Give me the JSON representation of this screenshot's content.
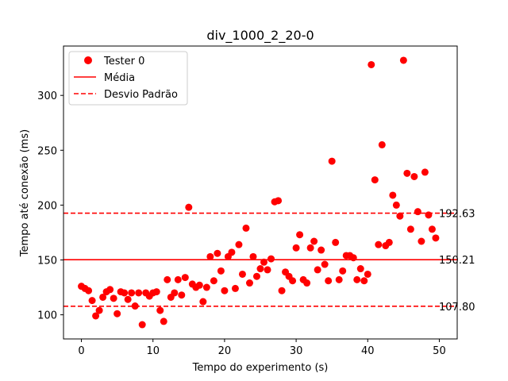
{
  "chart_data": {
    "type": "scatter",
    "title": "div_1000_2_20-0",
    "xlabel": "Tempo do experimento (s)",
    "ylabel": "Tempo até conexão (ms)",
    "xlim": [
      -2.5,
      52.5
    ],
    "ylim": [
      78,
      345
    ],
    "xticks": [
      0,
      10,
      20,
      30,
      40,
      50
    ],
    "yticks": [
      100,
      150,
      200,
      250,
      300
    ],
    "grid": false,
    "legend_position": "top-left",
    "colors": {
      "points": "#ff0000",
      "lines": "#ff0000",
      "axes": "#000000"
    },
    "series": [
      {
        "name": "Tester 0",
        "marker": "circle",
        "x": [
          0,
          0.5,
          1,
          1.5,
          2,
          2.5,
          3,
          3.5,
          4,
          4.5,
          5,
          5.5,
          6,
          6.5,
          7,
          7.5,
          8,
          8.5,
          9,
          9.5,
          10,
          10.5,
          11,
          11.5,
          12,
          12.5,
          13,
          13.5,
          14,
          14.5,
          15,
          15.5,
          16,
          16.5,
          17,
          17.5,
          18,
          18.5,
          19,
          19.5,
          20,
          20.5,
          21,
          21.5,
          22,
          22.5,
          23,
          23.5,
          24,
          24.5,
          25,
          25.5,
          26,
          26.5,
          27,
          27.5,
          28,
          28.5,
          29,
          29.5,
          30,
          30.5,
          31,
          31.5,
          32,
          32.5,
          33,
          33.5,
          34,
          34.5,
          35,
          35.5,
          36,
          36.5,
          37,
          37.5,
          38,
          38.5,
          39,
          39.5,
          40,
          40.5,
          41,
          41.5,
          42,
          42.5,
          43,
          43.5,
          44,
          44.5,
          45,
          45.5,
          46,
          46.5,
          47,
          47.5,
          48,
          48.5,
          49,
          49.5
        ],
        "y": [
          126,
          124,
          122,
          113,
          99,
          104,
          116,
          121,
          123,
          115,
          101,
          121,
          120,
          114,
          120,
          108,
          120,
          91,
          120,
          117,
          120,
          121,
          104,
          94,
          132,
          116,
          120,
          132,
          118,
          134,
          198,
          128,
          125,
          127,
          112,
          125,
          153,
          131,
          156,
          140,
          122,
          153,
          157,
          124,
          164,
          137,
          179,
          129,
          153,
          135,
          142,
          148,
          141,
          151,
          203,
          204,
          122,
          139,
          135,
          131,
          161,
          173,
          132,
          129,
          161,
          167,
          141,
          159,
          146,
          131,
          240,
          166,
          132,
          140,
          154,
          154,
          152,
          132,
          142,
          131,
          137,
          328,
          223,
          164,
          255,
          163,
          166,
          209,
          200,
          190,
          332,
          229,
          178,
          226,
          194,
          167,
          230,
          191,
          178,
          170
        ]
      }
    ],
    "lines": [
      {
        "name": "Média",
        "y": 150.21,
        "style": "solid",
        "label": "150.21"
      },
      {
        "name": "Desvio Padrão",
        "y": 192.63,
        "style": "dashed",
        "label": "192.63"
      },
      {
        "name": "",
        "y": 107.8,
        "style": "dashed",
        "label": "107.80"
      }
    ]
  }
}
